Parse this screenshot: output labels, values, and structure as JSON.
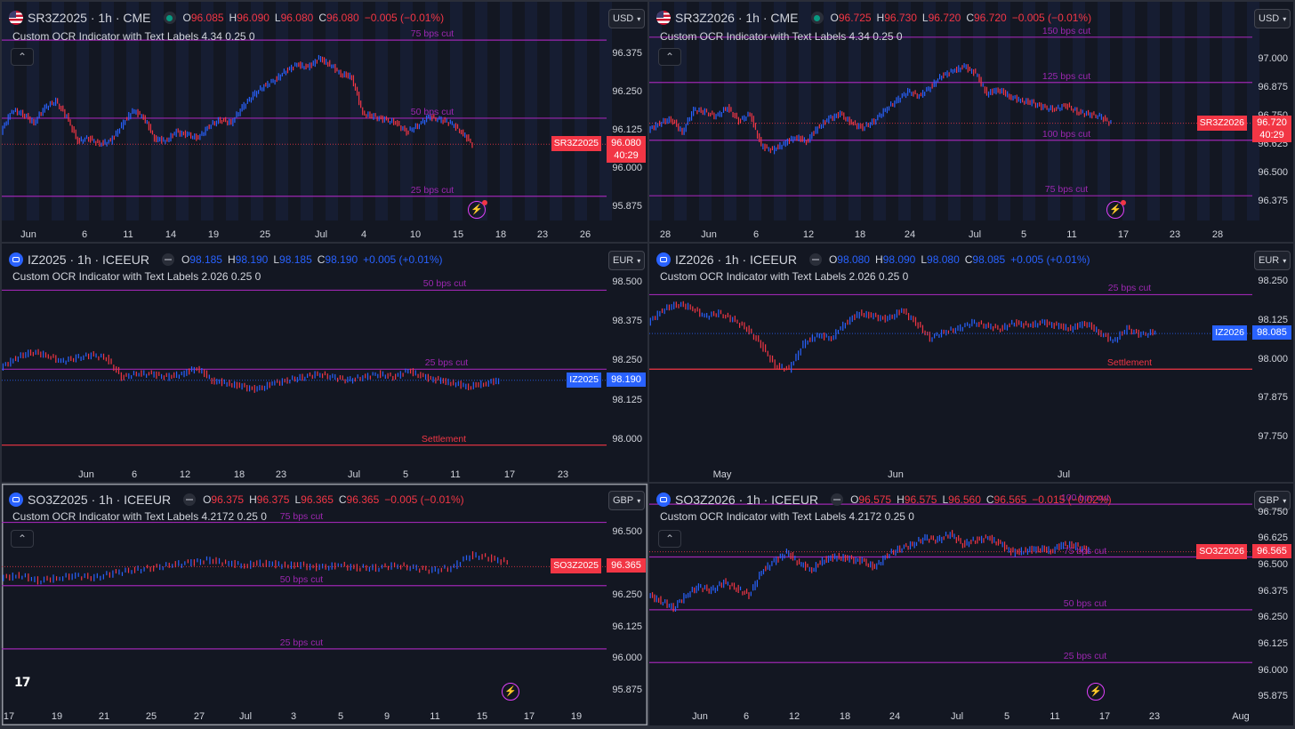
{
  "colors": {
    "up": "#2962ff",
    "down": "#f23645",
    "cut": "#9c27b0",
    "settle": "#f23645",
    "bg": "#131722"
  },
  "panes": [
    {
      "symbol": "SR3Z2025 · 1h · CME",
      "flag": "us",
      "status": "live",
      "ohlc": {
        "o": "96.085",
        "h": "96.090",
        "l": "96.080",
        "c": "96.080",
        "chg": "−0.005 (−0.01%)",
        "dir": "down"
      },
      "indicator": "Custom OCR Indicator with Text Labels 4.34 0.25 0",
      "currency": "USD",
      "y_ticks": [
        "96.375",
        "96.250",
        "96.125",
        "96.000",
        "95.875"
      ],
      "x_ticks": [
        "Jun",
        "6",
        "11",
        "14",
        "19",
        "25",
        "Jul",
        "4",
        "10",
        "15",
        "18",
        "23",
        "26"
      ],
      "levels": [
        {
          "label": "75 bps cut",
          "price": 96.42
        },
        {
          "label": "50 bps cut",
          "price": 96.165
        },
        {
          "label": "25 bps cut",
          "price": 95.91
        }
      ],
      "tag": {
        "name": "SR3Z2025",
        "price": "96.080",
        "countdown": "40:29",
        "dir": "down",
        "value": 96.08
      },
      "series": [
        96.12,
        96.19,
        96.18,
        96.15,
        96.2,
        96.22,
        96.17,
        96.09,
        96.1,
        96.08,
        96.09,
        96.14,
        96.19,
        96.17,
        96.1,
        96.09,
        96.12,
        96.11,
        96.1,
        96.14,
        96.16,
        96.15,
        96.2,
        96.24,
        96.27,
        96.29,
        96.32,
        96.34,
        96.33,
        96.36,
        96.34,
        96.31,
        96.3,
        96.18,
        96.17,
        96.16,
        96.15,
        96.12,
        96.14,
        96.17,
        96.16,
        96.15,
        96.12,
        96.08
      ],
      "bolt": true,
      "bolt_red": true,
      "shaded": true,
      "logo": false,
      "selected": false
    },
    {
      "symbol": "SR3Z2026 · 1h · CME",
      "flag": "us",
      "status": "live",
      "ohlc": {
        "o": "96.725",
        "h": "96.730",
        "l": "96.720",
        "c": "96.720",
        "chg": "−0.005 (−0.01%)",
        "dir": "down"
      },
      "indicator": "Custom OCR Indicator with Text Labels 4.34 0.25 0",
      "currency": "USD",
      "y_ticks": [
        "97.000",
        "96.875",
        "96.750",
        "96.625",
        "96.500",
        "96.375"
      ],
      "x_ticks": [
        "28",
        "Jun",
        "6",
        "12",
        "18",
        "24",
        "Jul",
        "5",
        "11",
        "17",
        "23",
        "28"
      ],
      "levels": [
        {
          "label": "150 bps cut",
          "price": 97.1
        },
        {
          "label": "125 bps cut",
          "price": 96.9
        },
        {
          "label": "100 bps cut",
          "price": 96.645
        },
        {
          "label": "75 bps cut",
          "price": 96.4
        }
      ],
      "tag": {
        "name": "SR3Z2026",
        "price": "96.720",
        "countdown": "40:29",
        "dir": "down",
        "value": 96.72
      },
      "series": [
        96.69,
        96.72,
        96.74,
        96.68,
        96.78,
        96.77,
        96.75,
        96.79,
        96.73,
        96.76,
        96.62,
        96.6,
        96.63,
        96.66,
        96.64,
        96.7,
        96.74,
        96.76,
        96.72,
        96.7,
        96.73,
        96.78,
        96.82,
        96.86,
        96.84,
        96.88,
        96.93,
        96.95,
        96.97,
        96.94,
        96.85,
        96.87,
        96.84,
        96.82,
        96.81,
        96.79,
        96.78,
        96.8,
        96.77,
        96.76,
        96.75,
        96.72
      ],
      "bolt": true,
      "bolt_red": true,
      "shaded": true,
      "logo": false,
      "selected": false
    },
    {
      "symbol": "IZ2025 · 1h · ICEEUR",
      "flag": "eu",
      "status": "closed",
      "ohlc": {
        "o": "98.185",
        "h": "98.190",
        "l": "98.185",
        "c": "98.190",
        "chg": "+0.005 (+0.01%)",
        "dir": "up"
      },
      "indicator": "Custom OCR Indicator with Text Labels 2.026 0.25 0",
      "currency": "EUR",
      "y_ticks": [
        "98.500",
        "98.375",
        "98.250",
        "98.125",
        "98.000"
      ],
      "x_ticks": [
        "Jun",
        "6",
        "12",
        "18",
        "23",
        "Jul",
        "5",
        "11",
        "17",
        "23"
      ],
      "levels": [
        {
          "label": "50 bps cut",
          "price": 98.475
        },
        {
          "label": "25 bps cut",
          "price": 98.225
        },
        {
          "label": "Settlement",
          "price": 97.985
        }
      ],
      "tag": {
        "name": "IZ2025",
        "price": "98.190",
        "countdown": "",
        "dir": "up",
        "value": 98.19
      },
      "series": [
        98.23,
        98.26,
        98.28,
        98.27,
        98.25,
        98.26,
        98.27,
        98.26,
        98.2,
        98.21,
        98.21,
        98.2,
        98.21,
        98.23,
        98.19,
        98.18,
        98.17,
        98.16,
        98.18,
        98.19,
        98.2,
        98.21,
        98.2,
        98.19,
        98.2,
        98.21,
        98.2,
        98.22,
        98.2,
        98.19,
        98.18,
        98.17,
        98.18,
        98.19
      ],
      "bolt": false,
      "bolt_red": false,
      "shaded": false,
      "logo": false,
      "selected": false
    },
    {
      "symbol": "IZ2026 · 1h · ICEEUR",
      "flag": "eu",
      "status": "closed",
      "ohlc": {
        "o": "98.080",
        "h": "98.090",
        "l": "98.080",
        "c": "98.085",
        "chg": "+0.005 (+0.01%)",
        "dir": "up"
      },
      "indicator": "Custom OCR Indicator with Text Labels 2.026 0.25 0",
      "currency": "EUR",
      "y_ticks": [
        "98.250",
        "98.125",
        "98.000",
        "97.875",
        "97.750"
      ],
      "x_ticks": [
        "May",
        "Jun",
        "Jul"
      ],
      "levels": [
        {
          "label": "25 bps cut",
          "price": 98.21
        },
        {
          "label": "Settlement",
          "price": 97.97
        }
      ],
      "tag": {
        "name": "IZ2026",
        "price": "98.085",
        "countdown": "",
        "dir": "up",
        "value": 98.085
      },
      "series": [
        98.12,
        98.16,
        98.18,
        98.17,
        98.14,
        98.15,
        98.13,
        98.1,
        98.05,
        97.98,
        97.97,
        98.05,
        98.08,
        98.07,
        98.12,
        98.15,
        98.14,
        98.13,
        98.16,
        98.12,
        98.07,
        98.09,
        98.1,
        98.12,
        98.11,
        98.1,
        98.12,
        98.11,
        98.12,
        98.11,
        98.1,
        98.12,
        98.09,
        98.06,
        98.1,
        98.08,
        98.09
      ],
      "bolt": false,
      "bolt_red": false,
      "shaded": false,
      "logo": false,
      "selected": false
    },
    {
      "symbol": "SO3Z2025 · 1h · ICEEUR",
      "flag": "eu",
      "status": "closed",
      "ohlc": {
        "o": "96.375",
        "h": "96.375",
        "l": "96.365",
        "c": "96.365",
        "chg": "−0.005 (−0.01%)",
        "dir": "down"
      },
      "indicator": "Custom OCR Indicator with Text Labels 4.2172 0.25 0",
      "currency": "GBP",
      "y_ticks": [
        "96.500",
        "96.375",
        "96.250",
        "96.125",
        "96.000",
        "95.875"
      ],
      "x_ticks": [
        "17",
        "19",
        "21",
        "25",
        "27",
        "Jul",
        "3",
        "5",
        "9",
        "11",
        "15",
        "17",
        "19"
      ],
      "levels": [
        {
          "label": "75 bps cut",
          "price": 96.54
        },
        {
          "label": "50 bps cut",
          "price": 96.29
        },
        {
          "label": "25 bps cut",
          "price": 96.04
        }
      ],
      "tag": {
        "name": "SO3Z2025",
        "price": "96.365",
        "countdown": "",
        "dir": "down",
        "value": 96.365
      },
      "series": [
        96.32,
        96.33,
        96.31,
        96.32,
        96.33,
        96.32,
        96.34,
        96.35,
        96.36,
        96.37,
        96.38,
        96.39,
        96.38,
        96.37,
        96.38,
        96.37,
        96.37,
        96.36,
        96.37,
        96.36,
        96.36,
        96.37,
        96.36,
        96.35,
        96.36,
        96.41,
        96.4,
        96.38
      ],
      "bolt": true,
      "bolt_red": false,
      "shaded": false,
      "logo": true,
      "selected": true
    },
    {
      "symbol": "SO3Z2026 · 1h · ICEEUR",
      "flag": "eu",
      "status": "closed",
      "ohlc": {
        "o": "96.575",
        "h": "96.575",
        "l": "96.560",
        "c": "96.565",
        "chg": "−0.015 (−0.02%)",
        "dir": "down"
      },
      "indicator": "Custom OCR Indicator with Text Labels 4.2172 0.25 0",
      "currency": "GBP",
      "y_ticks": [
        "96.750",
        "96.625",
        "96.500",
        "96.375",
        "96.250",
        "96.125",
        "96.000",
        "95.875"
      ],
      "x_ticks": [
        "Jun",
        "6",
        "12",
        "18",
        "24",
        "Jul",
        "5",
        "11",
        "17",
        "23",
        "Aug"
      ],
      "levels": [
        {
          "label": "100 bps cut",
          "price": 96.79
        },
        {
          "label": "75 bps cut",
          "price": 96.54
        },
        {
          "label": "50 bps cut",
          "price": 96.29
        },
        {
          "label": "25 bps cut",
          "price": 96.04
        }
      ],
      "tag": {
        "name": "SO3Z2026",
        "price": "96.565",
        "countdown": "",
        "dir": "down",
        "value": 96.565
      },
      "series": [
        96.36,
        96.33,
        96.3,
        96.36,
        96.4,
        96.38,
        96.42,
        96.39,
        96.36,
        96.47,
        96.52,
        96.56,
        96.51,
        96.48,
        96.53,
        96.54,
        96.53,
        96.52,
        96.49,
        96.55,
        96.58,
        96.6,
        96.63,
        96.62,
        96.65,
        96.6,
        96.62,
        96.63,
        96.6,
        96.56,
        96.57,
        96.58,
        96.57,
        96.6,
        96.59,
        96.57
      ],
      "bolt": true,
      "bolt_red": false,
      "shaded": false,
      "logo": false,
      "selected": false
    }
  ],
  "logo_text": "17"
}
